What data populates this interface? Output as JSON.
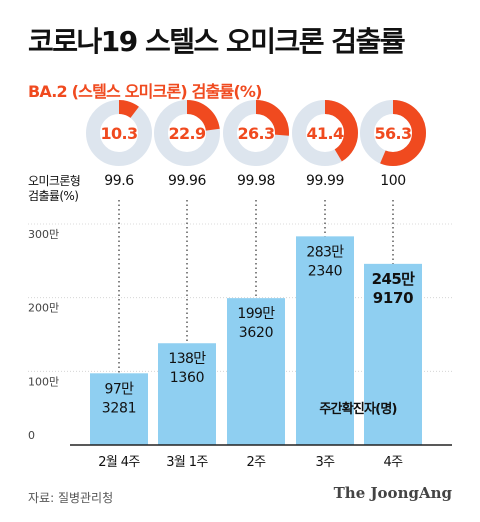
{
  "title": "코로나19 스텔스 오미크론 검출률",
  "source": "자료: 질병관리청",
  "brand": "The JoongAng",
  "colors": {
    "accent": "#f04a1f",
    "donut_track": "#dde5ee",
    "bar": "#8fcff1",
    "axis": "#222222",
    "grid": "#cfcfcf"
  },
  "chart_data": [
    {
      "type": "pie",
      "title": "BA.2 (스텔스 오미크론) 검출률(%)",
      "categories": [
        "2월 4주",
        "3월 1주",
        "2주",
        "3주",
        "4주"
      ],
      "values": [
        10.3,
        22.9,
        26.3,
        41.4,
        56.3
      ],
      "labels": [
        "10.3",
        "22.9",
        "26.3",
        "41.4",
        "56.3"
      ],
      "max": 100
    },
    {
      "type": "table",
      "row_label": [
        "오미크론형",
        "검출률(%)"
      ],
      "categories": [
        "2월 4주",
        "3월 1주",
        "2주",
        "3주",
        "4주"
      ],
      "values": [
        "99.6",
        "99.96",
        "99.98",
        "99.99",
        "100"
      ]
    },
    {
      "type": "bar",
      "categories": [
        "2월 4주",
        "3월 1주",
        "2주",
        "3주",
        "4주"
      ],
      "values": [
        973281,
        1381360,
        1993620,
        2832340,
        2459170
      ],
      "labels": [
        [
          "97만",
          "3281"
        ],
        [
          "138만",
          "1360"
        ],
        [
          "199만",
          "3620"
        ],
        [
          "283만",
          "2340"
        ],
        [
          "245만",
          "9170"
        ]
      ],
      "y_ticks": [
        0,
        1000000,
        2000000,
        3000000
      ],
      "y_tick_labels": [
        "0",
        "100만",
        "200만",
        "300만"
      ],
      "ylim": [
        0,
        3000000
      ],
      "series_name": "주간확진자(명)",
      "highlight_index": 4
    }
  ]
}
